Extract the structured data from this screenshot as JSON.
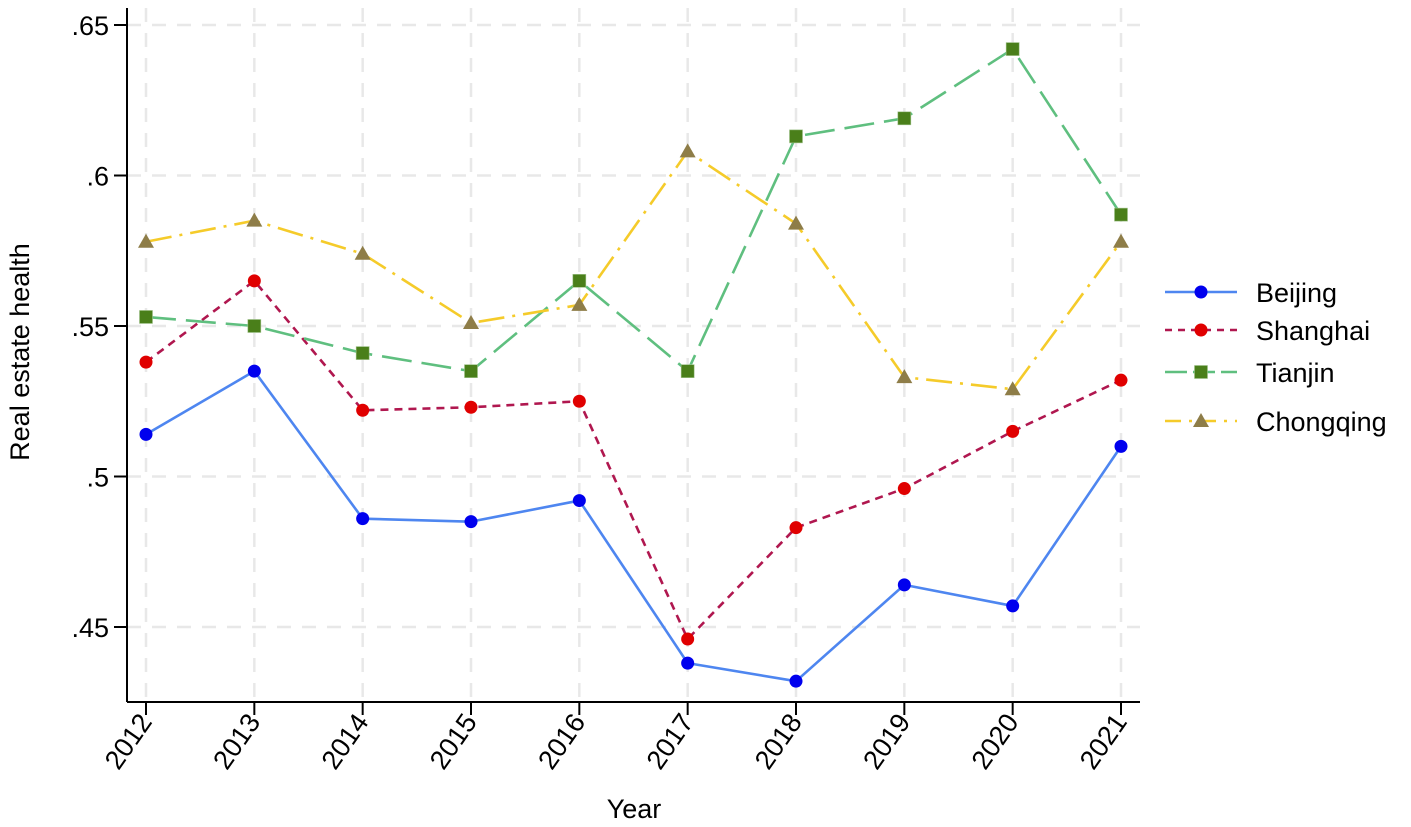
{
  "chart_data": {
    "type": "line",
    "title": "",
    "xlabel": "Year",
    "ylabel": "Real estate health",
    "x": [
      2012,
      2013,
      2014,
      2015,
      2016,
      2017,
      2018,
      2019,
      2020,
      2021
    ],
    "x_tick_labels": [
      "2012",
      "2013",
      "2014",
      "2015",
      "2016",
      "2017",
      "2018",
      "2019",
      "2020",
      "2021"
    ],
    "y_ticks": [
      0.45,
      0.5,
      0.55,
      0.6,
      0.65
    ],
    "y_tick_labels": [
      ".45",
      ".5",
      ".55",
      ".6",
      ".65"
    ],
    "ylim": [
      0.425,
      0.65
    ],
    "grid": true,
    "legend_position": "right",
    "series": [
      {
        "name": "Beijing",
        "line_color": "#4e86f0",
        "marker_color": "#0000ee",
        "marker": "circle",
        "line_style": "solid",
        "values": [
          0.514,
          0.535,
          0.486,
          0.485,
          0.492,
          0.438,
          0.432,
          0.464,
          0.457,
          0.51
        ]
      },
      {
        "name": "Shanghai",
        "line_color": "#b0174f",
        "marker_color": "#e00000",
        "marker": "circle",
        "line_style": "dash",
        "values": [
          0.538,
          0.565,
          0.522,
          0.523,
          0.525,
          0.446,
          0.483,
          0.496,
          0.515,
          0.532
        ]
      },
      {
        "name": "Tianjin",
        "line_color": "#5fbf7f",
        "marker_color": "#4a7f1a",
        "marker": "square",
        "line_style": "longdash",
        "values": [
          0.553,
          0.55,
          0.541,
          0.535,
          0.565,
          0.535,
          0.613,
          0.619,
          0.642,
          0.587
        ]
      },
      {
        "name": "Chongqing",
        "line_color": "#f5cb2a",
        "marker_color": "#8e7d48",
        "marker": "triangle",
        "line_style": "dashdot",
        "values": [
          0.578,
          0.585,
          0.574,
          0.551,
          0.557,
          0.608,
          0.584,
          0.533,
          0.529,
          0.578
        ]
      }
    ]
  }
}
